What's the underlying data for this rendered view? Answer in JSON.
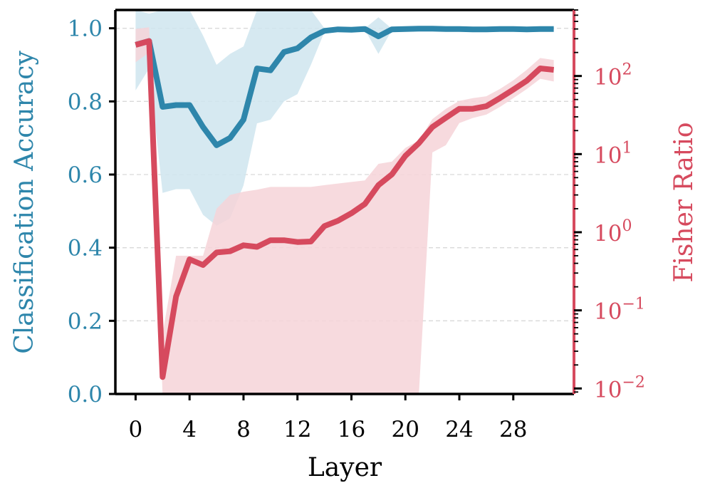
{
  "chart_data": {
    "type": "line",
    "xlabel": "Layer",
    "ylabel_left": "Classification Accuracy",
    "ylabel_right": "Fisher Ratio",
    "xlim": [
      -1.5,
      32.5
    ],
    "xticks": [
      0,
      4,
      8,
      12,
      16,
      20,
      24,
      28
    ],
    "xtick_labels": [
      "0",
      "4",
      "8",
      "12",
      "16",
      "20",
      "24",
      "28"
    ],
    "ylim_left": [
      0,
      1.05
    ],
    "yticks_left": [
      0.0,
      0.2,
      0.4,
      0.6,
      0.8,
      1.0
    ],
    "ytick_labels_left": [
      "0.0",
      "0.2",
      "0.4",
      "0.6",
      "0.8",
      "1.0"
    ],
    "yscale_right": "log",
    "ylim_right": [
      0.0085,
      700
    ],
    "yticks_right": [
      0.01,
      0.1,
      1,
      10,
      100
    ],
    "ytick_labels_right": [
      {
        "base": "10",
        "exp": "−2"
      },
      {
        "base": "10",
        "exp": "−1"
      },
      {
        "base": "10",
        "exp": "0"
      },
      {
        "base": "10",
        "exp": "1"
      },
      {
        "base": "10",
        "exp": "2"
      }
    ],
    "grid": "horizontal-dashed",
    "colors": {
      "accuracy": "#2e86ab",
      "fisher": "#d64a5e",
      "accuracy_band": "#cfe5ef",
      "fisher_band": "#f6d3d8"
    },
    "series": [
      {
        "axis": "left",
        "x": [
          0,
          1,
          2,
          3,
          4,
          5,
          6,
          7,
          8,
          9,
          10,
          11,
          12,
          13,
          14,
          15,
          16,
          17,
          18,
          19,
          20,
          21,
          22,
          23,
          24,
          25,
          26,
          27,
          28,
          29,
          30,
          31
        ],
        "values": [
          0.955,
          0.965,
          0.785,
          0.79,
          0.79,
          0.73,
          0.68,
          0.7,
          0.75,
          0.89,
          0.885,
          0.935,
          0.945,
          0.975,
          0.993,
          0.997,
          0.996,
          0.998,
          0.978,
          0.997,
          0.998,
          0.999,
          0.999,
          0.998,
          0.998,
          0.997,
          0.997,
          0.998,
          0.998,
          0.997,
          0.998,
          0.998
        ],
        "lower": [
          0.83,
          0.89,
          0.55,
          0.56,
          0.56,
          0.49,
          0.46,
          0.48,
          0.57,
          0.74,
          0.75,
          0.8,
          0.82,
          0.9,
          0.99,
          0.995,
          0.994,
          0.996,
          0.93,
          0.995,
          0.997,
          0.998,
          0.998,
          0.997,
          0.997,
          0.996,
          0.996,
          0.997,
          0.997,
          0.996,
          0.997,
          0.997
        ],
        "upper": [
          1.08,
          1.04,
          1.05,
          1.05,
          1.05,
          0.98,
          0.9,
          0.93,
          0.95,
          1.05,
          1.05,
          1.05,
          1.05,
          1.05,
          1.0,
          0.999,
          0.998,
          1.0,
          1.03,
          0.999,
          0.999,
          1.0,
          1.0,
          0.999,
          0.999,
          0.998,
          0.998,
          0.999,
          0.999,
          0.998,
          0.999,
          0.999
        ]
      },
      {
        "axis": "right",
        "x": [
          0,
          1,
          2,
          3,
          4,
          5,
          6,
          7,
          8,
          9,
          10,
          11,
          12,
          13,
          14,
          15,
          16,
          17,
          18,
          19,
          20,
          21,
          22,
          23,
          24,
          25,
          26,
          27,
          28,
          29,
          30,
          31
        ],
        "values": [
          250,
          280,
          0.014,
          0.15,
          0.45,
          0.38,
          0.55,
          0.57,
          0.68,
          0.65,
          0.79,
          0.79,
          0.75,
          0.76,
          1.2,
          1.4,
          1.75,
          2.3,
          4.0,
          5.5,
          9.5,
          13.8,
          22.2,
          29.2,
          38,
          38,
          41,
          52,
          67,
          87,
          125,
          120
        ],
        "lower": [
          150,
          200,
          0.0085,
          0.0085,
          0.0085,
          0.0085,
          0.0085,
          0.0085,
          0.0085,
          0.0085,
          0.0085,
          0.0085,
          0.0085,
          0.0085,
          0.0085,
          0.0085,
          0.0085,
          0.0085,
          0.0085,
          0.0085,
          0.0085,
          0.0085,
          10.5,
          13,
          25,
          29,
          32,
          40,
          52,
          68,
          92,
          85
        ],
        "upper": [
          400,
          420,
          0.05,
          0.5,
          0.5,
          0.5,
          2.0,
          3.0,
          3.3,
          3.5,
          3.8,
          3.8,
          3.8,
          3.8,
          4.0,
          4.2,
          4.4,
          4.6,
          7.5,
          8.0,
          12.0,
          15.0,
          28.0,
          38.0,
          48.0,
          52.0,
          55.0,
          68.0,
          88.0,
          120.0,
          170.0,
          160.0
        ]
      }
    ]
  }
}
